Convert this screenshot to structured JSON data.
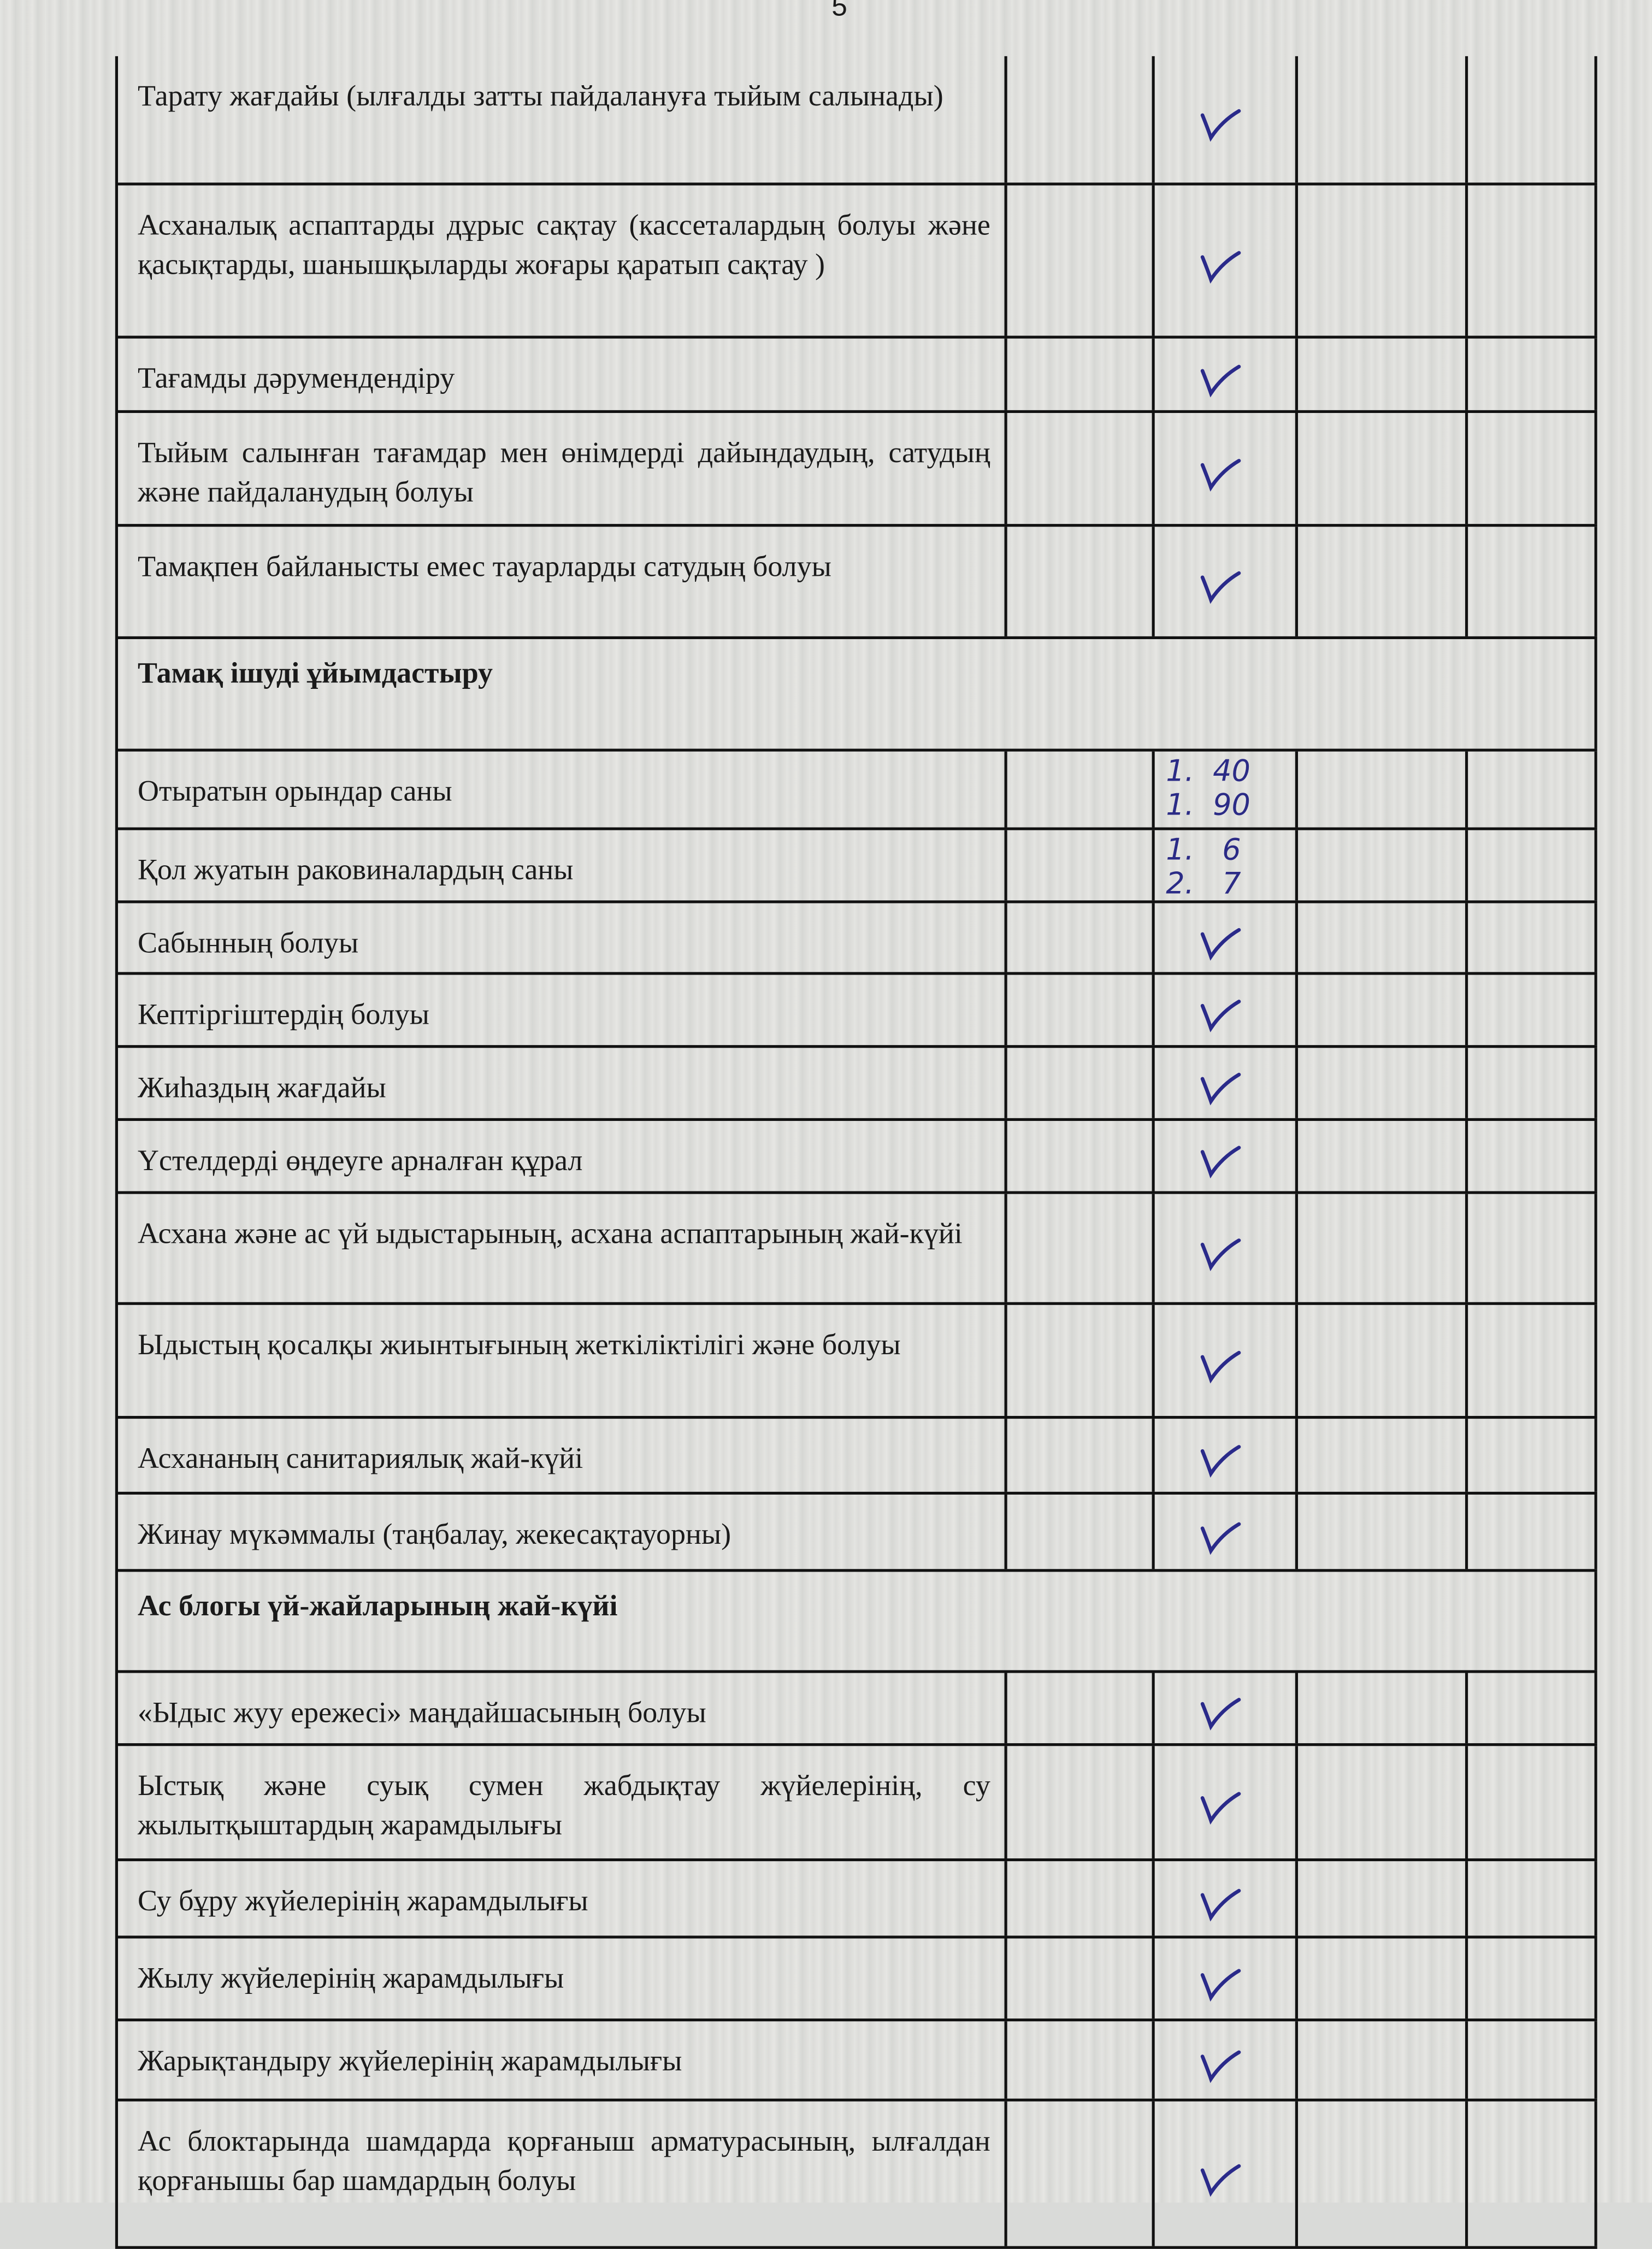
{
  "page_number": "5",
  "mark_color": "#2a2a8a",
  "rows": [
    {
      "type": "item",
      "text": "Тарату жағдайы (ылғалды затты пайдалануға тыйым салынады)",
      "mark": "check",
      "h": 90
    },
    {
      "type": "item",
      "text": "Асханалық аспаптарды дұрыс сақтау (кассеталардың болуы және қасықтарды, шанышқыларды жоғары қаратып сақтау )",
      "mark": "check",
      "h": 107
    },
    {
      "type": "item",
      "text": "Тағамды дәрумендендіру",
      "mark": "check",
      "h": 51
    },
    {
      "type": "item",
      "text": "Тыйым салынған тағамдар мен өнімдерді дайындаудың, сатудың және пайдаланудың болуы",
      "mark": "check",
      "h": 79
    },
    {
      "type": "item",
      "text": "Тамақпен байланысты емес тауарларды сатудың болуы",
      "mark": "check",
      "h": 78
    },
    {
      "type": "section",
      "text": "Тамақ ішуді ұйымдастыру",
      "h": 78
    },
    {
      "type": "item",
      "text": "Отыратын орындар саны",
      "mark": "text",
      "value": "1.  40\n1.  90",
      "h": 54
    },
    {
      "type": "item",
      "text": "Қол жуатын раковиналардың саны",
      "mark": "text",
      "value": "1.   6\n2.   7",
      "h": 50
    },
    {
      "type": "item",
      "text": "Сабынның болуы",
      "mark": "check",
      "h": 49
    },
    {
      "type": "item",
      "text": "Кептіргіштердің болуы",
      "mark": "check",
      "h": 50
    },
    {
      "type": "item",
      "text": "Жиһаздың жағдайы",
      "mark": "check",
      "h": 50
    },
    {
      "type": "item",
      "text": "Үстелдерді өңдеуге арналған құрал",
      "mark": "check",
      "h": 50
    },
    {
      "type": "item",
      "text": "Асхана және ас үй ыдыстарының, асхана аспаптарының жай-күйі",
      "mark": "check",
      "h": 77
    },
    {
      "type": "item",
      "text": "Ыдыстың қосалқы жиынтығының жеткіліктілігі және болуы",
      "mark": "check",
      "h": 79
    },
    {
      "type": "item",
      "text": "Асхананың санитариялық жай-күйі",
      "mark": "check",
      "h": 52
    },
    {
      "type": "item",
      "text": "Жинау мүкәммалы (таңбалау, жекесақтауорны)",
      "mark": "check",
      "h": 53
    },
    {
      "type": "section",
      "text": "Ас блогы үй-жайларының жай-күйі",
      "h": 70
    },
    {
      "type": "item",
      "text": "«Ыдыс жуу ережесі» маңдайшасының болуы",
      "mark": "check",
      "h": 50
    },
    {
      "type": "item",
      "text": "Ыстық және суық сумен жабдықтау жүйелерінің, су жылытқыштардың жарамдылығы",
      "mark": "check",
      "h": 80
    },
    {
      "type": "item",
      "text": "Су бұру жүйелерінің жарамдылығы",
      "mark": "check",
      "h": 53
    },
    {
      "type": "item",
      "text": "Жылу жүйелерінің жарамдылығы",
      "mark": "check",
      "h": 57
    },
    {
      "type": "item",
      "text": "Жарықтандыру жүйелерінің жарамдылығы",
      "mark": "check",
      "h": 55
    },
    {
      "type": "item",
      "text": "Ас блоктарында шамдарда қорғаныш арматурасының, ылғалдан қорғанышы бар шамдардың болуы",
      "mark": "check",
      "h": 103
    }
  ]
}
